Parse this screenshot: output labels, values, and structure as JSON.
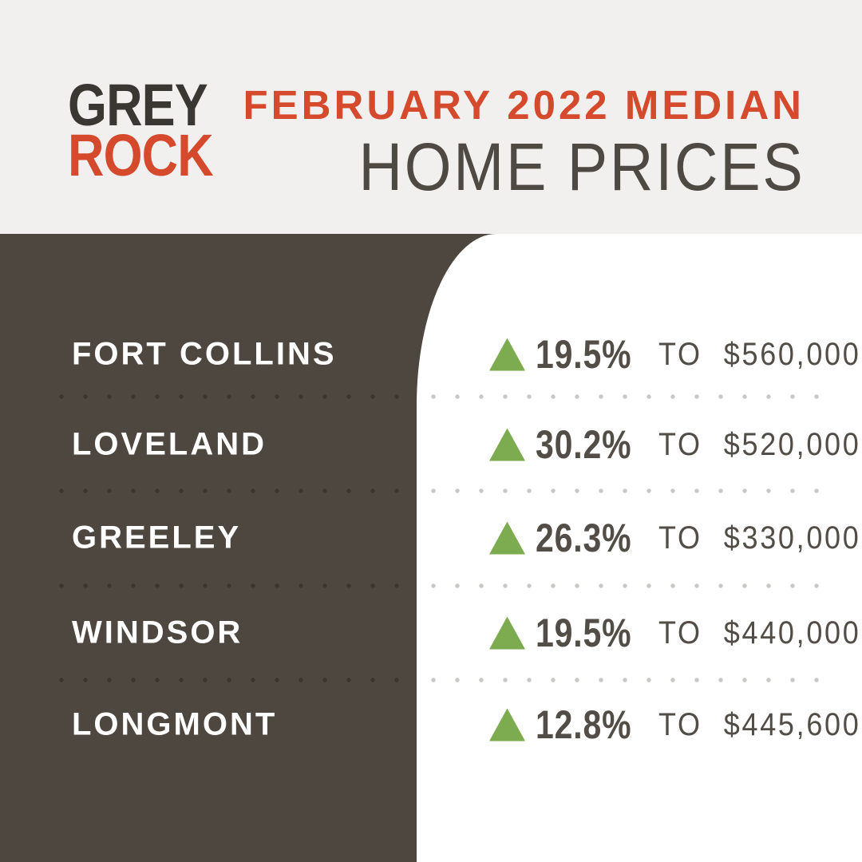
{
  "brand": {
    "logo_line1": "GREY",
    "logo_line2": "ROCK"
  },
  "header": {
    "eyebrow": "FEBRUARY 2022 MEDIAN",
    "title": "HOME PRICES"
  },
  "colors": {
    "background_light": "#f1f0ee",
    "panel_brown": "#4d473f",
    "panel_white": "#ffffff",
    "accent_red": "#d5492c",
    "logo_charcoal": "#3a3733",
    "text_dark": "#524d46",
    "trend_green": "#7dab4f",
    "dots_on_brown": "#3a352f",
    "dots_on_white": "#c9c8c6"
  },
  "chart_data": {
    "type": "table",
    "title": "FEBRUARY 2022 MEDIAN HOME PRICES",
    "categories": [
      "FORT COLLINS",
      "LOVELAND",
      "GREELEY",
      "WINDSOR",
      "LONGMONT"
    ],
    "percent_change": [
      19.5,
      30.2,
      26.3,
      19.5,
      12.8
    ],
    "median_price": [
      560000,
      520000,
      330000,
      440000,
      445600
    ],
    "rows": [
      {
        "city": "FORT COLLINS",
        "direction": "up",
        "percent": "19.5%",
        "to_label": "TO",
        "price": "$560,000"
      },
      {
        "city": "LOVELAND",
        "direction": "up",
        "percent": "30.2%",
        "to_label": "TO",
        "price": "$520,000"
      },
      {
        "city": "GREELEY",
        "direction": "up",
        "percent": "26.3%",
        "to_label": "TO",
        "price": "$330,000"
      },
      {
        "city": "WINDSOR",
        "direction": "up",
        "percent": "19.5%",
        "to_label": "TO",
        "price": "$440,000"
      },
      {
        "city": "LONGMONT",
        "direction": "up",
        "percent": "12.8%",
        "to_label": "TO",
        "price": "$445,600"
      }
    ]
  }
}
